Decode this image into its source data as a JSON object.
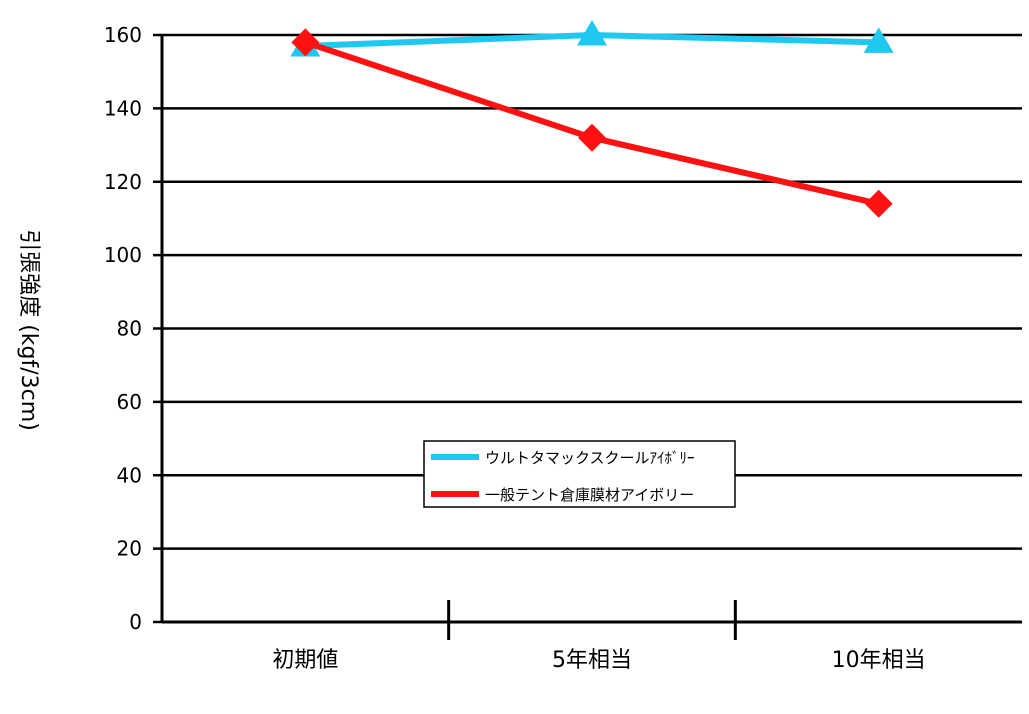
{
  "chart_data": {
    "type": "line",
    "categories": [
      "初期値",
      "5年相当",
      "10年相当"
    ],
    "ylabel": "引張強度 (kgf/3cm)",
    "ylim": [
      0,
      160
    ],
    "yticks": [
      0,
      20,
      40,
      60,
      80,
      100,
      120,
      140,
      160
    ],
    "grid": true,
    "legend_position": "center",
    "series": [
      {
        "name": "ウルトタマックスクールｱｲﾎﾞﾘｰ",
        "values": [
          157,
          160,
          158
        ],
        "color": "#1ec8f0",
        "marker": "triangle"
      },
      {
        "name": "一般テント倉庫膜材アイボリー",
        "values": [
          158,
          132,
          114
        ],
        "color": "#ff1111",
        "marker": "diamond"
      }
    ]
  }
}
